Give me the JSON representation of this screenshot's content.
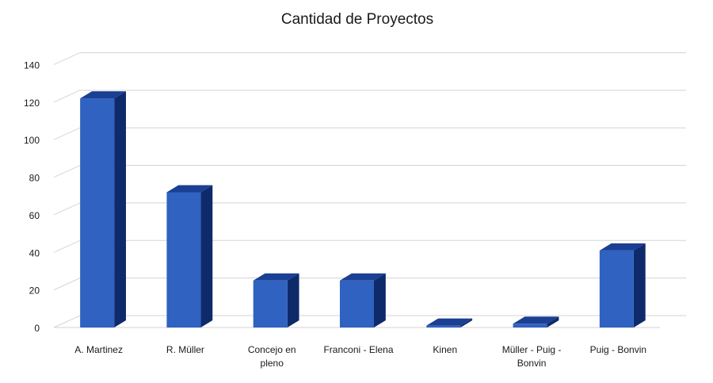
{
  "chart_data": {
    "type": "bar",
    "title": "Cantidad de Proyectos",
    "xlabel": "",
    "ylabel": "",
    "categories": [
      [
        "A. Martinez"
      ],
      [
        "R. Müller"
      ],
      [
        "Concejo en",
        "pleno"
      ],
      [
        "Franconi - Elena"
      ],
      [
        "Kinen"
      ],
      [
        "Müller - Puig -",
        "Bonvin"
      ],
      [
        "Puig - Bonvin"
      ]
    ],
    "values": [
      122,
      72,
      25,
      25,
      1,
      2,
      41
    ],
    "ylim": [
      0,
      140
    ],
    "yticks": [
      "0",
      "20",
      "40",
      "60",
      "80",
      "100",
      "120",
      "140"
    ],
    "grid": true,
    "legend": "none",
    "colors": {
      "bar_front": "#2f62c1",
      "bar_side": "#0f2a6b",
      "bar_top": "#1a3f93",
      "grid": "#d3d3d3",
      "wall": "#d6d6d6"
    }
  }
}
